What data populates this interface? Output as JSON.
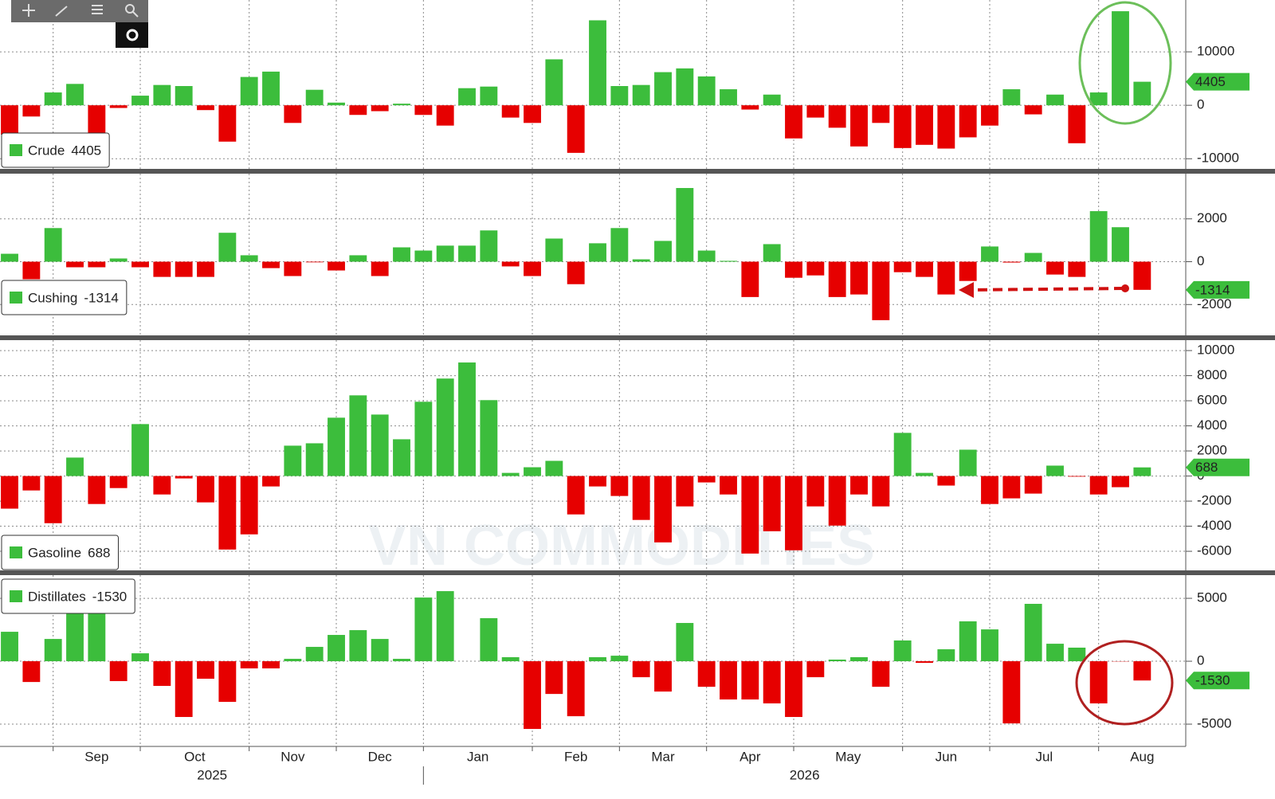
{
  "x_axis": {
    "xlim": [
      -0.44,
      54.0
    ],
    "xticks": [
      2,
      6,
      11,
      15,
      19,
      24,
      28,
      32,
      36,
      41,
      45,
      50
    ],
    "month_labels": [
      {
        "value": 4,
        "label": "Sep"
      },
      {
        "value": 8.5,
        "label": "Oct"
      },
      {
        "value": 13,
        "label": "Nov"
      },
      {
        "value": 17,
        "label": "Dec"
      },
      {
        "value": 21.5,
        "label": "Jan"
      },
      {
        "value": 26,
        "label": "Feb"
      },
      {
        "value": 30,
        "label": "Mar"
      },
      {
        "value": 34,
        "label": "Apr"
      },
      {
        "value": 38.5,
        "label": "May"
      },
      {
        "value": 43,
        "label": "Jun"
      },
      {
        "value": 47.5,
        "label": "Jul"
      },
      {
        "value": 52,
        "label": "Aug"
      }
    ],
    "year_labels": [
      {
        "value": 9.3,
        "label": "2025"
      },
      {
        "value": 36.5,
        "label": "2026"
      }
    ],
    "year_divider": 19
  },
  "watermark": "VN COMMODITIES",
  "chart_data": [
    {
      "type": "bar",
      "ylim": [
        -11900,
        19700
      ],
      "yticks": [
        -10000,
        0,
        10000
      ],
      "grid": true,
      "colors": {
        "positive": "#3cbd3c",
        "negative": "#e60000"
      },
      "series": [
        {
          "name": "Crude",
          "color": "#3cbd3c",
          "values": [
            -5500,
            -2100,
            2400,
            4000,
            -9600,
            -500,
            1800,
            3800,
            3600,
            -900,
            -6800,
            5300,
            6300,
            -3300,
            2900,
            500,
            -1800,
            -1100,
            300,
            -1800,
            -3800,
            3200,
            3500,
            -2300,
            -3300,
            8600,
            -8900,
            15900,
            3600,
            3800,
            6200,
            6900,
            5400,
            3000,
            -800,
            2000,
            -6200,
            -2300,
            -4200,
            -7700,
            -3300,
            -8000,
            -7400,
            -8100,
            -6000,
            -3800,
            3000,
            -1700,
            2000,
            -7100,
            2400,
            17600,
            4405
          ]
        }
      ]
    },
    {
      "type": "bar",
      "ylim": [
        -3440,
        4110
      ],
      "yticks": [
        -2000,
        0,
        2000
      ],
      "grid": true,
      "colors": {
        "positive": "#3cbd3c",
        "negative": "#e60000"
      },
      "series": [
        {
          "name": "Cushing",
          "color": "#3cbd3c",
          "values": [
            370,
            -820,
            1570,
            -260,
            -260,
            150,
            -260,
            -710,
            -710,
            -710,
            1350,
            300,
            -300,
            -670,
            -30,
            -410,
            300,
            -670,
            670,
            520,
            750,
            750,
            1460,
            -220,
            -670,
            1080,
            -1050,
            860,
            1570,
            110,
            970,
            3440,
            520,
            40,
            -1650,
            820,
            -750,
            -640,
            -1650,
            -1530,
            -2730,
            -490,
            -710,
            -1530,
            -900,
            710,
            -40,
            410,
            -600,
            -710,
            2360,
            1610,
            -1314
          ]
        }
      ]
    },
    {
      "type": "bar",
      "ylim": [
        -7520,
        10830
      ],
      "yticks": [
        -6000,
        -4000,
        -2000,
        0,
        2000,
        4000,
        6000,
        8000,
        10000
      ],
      "grid": true,
      "colors": {
        "positive": "#3cbd3c",
        "negative": "#e60000"
      },
      "series": [
        {
          "name": "Gasoline",
          "color": "#3cbd3c",
          "values": [
            -2600,
            -1150,
            -3760,
            1470,
            -2230,
            -960,
            4140,
            -1470,
            -190,
            -2100,
            -5860,
            -4650,
            -830,
            2420,
            2610,
            4650,
            6430,
            4900,
            2930,
            5920,
            7770,
            9050,
            6050,
            250,
            700,
            1210,
            -3060,
            -830,
            -1590,
            -3500,
            -5290,
            -2420,
            -510,
            -1470,
            -6180,
            -4400,
            -5920,
            -2420,
            -3950,
            -1470,
            -2420,
            3440,
            250,
            -760,
            2100,
            -2230,
            -1780,
            -1400,
            830,
            -50,
            -1470,
            -890,
            688
          ]
        }
      ]
    },
    {
      "type": "bar",
      "ylim": [
        -6770,
        6840
      ],
      "yticks": [
        -5000,
        0,
        5000
      ],
      "grid": true,
      "colors": {
        "positive": "#3cbd3c",
        "negative": "#e60000"
      },
      "series": [
        {
          "name": "Distillates",
          "color": "#3cbd3c",
          "values": [
            2340,
            -1650,
            1770,
            4620,
            3990,
            -1580,
            630,
            -1960,
            -4430,
            -1390,
            -3230,
            -570,
            -570,
            190,
            1140,
            2090,
            2470,
            1770,
            190,
            5060,
            5570,
            0,
            3420,
            320,
            -5380,
            -2600,
            -4370,
            320,
            440,
            -1270,
            -2410,
            3040,
            -2030,
            -3040,
            -3040,
            -3350,
            -4430,
            -1270,
            130,
            320,
            -2030,
            1650,
            -130,
            950,
            3170,
            2530,
            -4940,
            4560,
            1390,
            1080,
            -3350,
            -20,
            -1530
          ]
        }
      ]
    }
  ]
}
